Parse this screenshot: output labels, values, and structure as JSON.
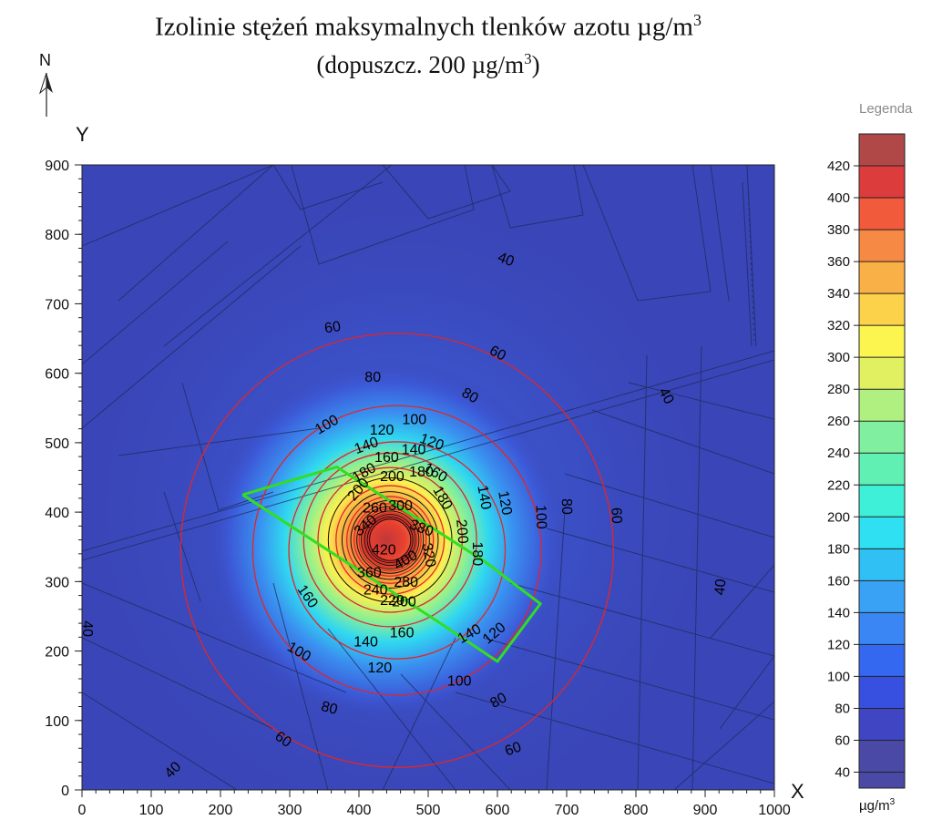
{
  "title": {
    "line1": "Izolinie stężeń maksymalnych tlenków azotu µg/m",
    "line1_sup": "3",
    "line2": "(dopuszcz. 200 µg/m",
    "line2_sup": "3",
    "line2_end": ")"
  },
  "north_arrow": {
    "label": "N"
  },
  "legend": {
    "title": "Legenda",
    "unit": "µg/m",
    "unit_sup": "3"
  },
  "colors": {
    "background_field": "#3a46b8",
    "red_contour": "#e0262a",
    "black_contour": "#111111",
    "boundary": "#33dd22",
    "cadastral_lines": "#1e2a5c"
  },
  "chart_data": {
    "type": "contour",
    "xlabel": "X",
    "ylabel": "Y",
    "xlim": [
      0,
      1000
    ],
    "ylim": [
      0,
      900
    ],
    "xticks": [
      0,
      100,
      200,
      300,
      400,
      500,
      600,
      700,
      800,
      900,
      1000
    ],
    "yticks": [
      0,
      100,
      200,
      300,
      400,
      500,
      600,
      700,
      800,
      900
    ],
    "peak": {
      "x": 440,
      "y": 360
    },
    "legend_levels": [
      40,
      60,
      80,
      100,
      120,
      140,
      160,
      180,
      200,
      220,
      240,
      260,
      280,
      300,
      320,
      340,
      360,
      380,
      400,
      420
    ],
    "legend_colors": [
      "#4a4aa6",
      "#4045c4",
      "#3850e0",
      "#3468f0",
      "#3a86f4",
      "#3aa2f4",
      "#30c0f4",
      "#2ee0f2",
      "#3ef0d8",
      "#60f0b4",
      "#80f0a0",
      "#b0f080",
      "#e0f060",
      "#fcf550",
      "#fcd24a",
      "#f9b046",
      "#f68a44",
      "#f15a3a",
      "#dc3c3c",
      "#b04848"
    ],
    "contour_labels": [
      {
        "text": "40",
        "x": 612,
        "y": 763,
        "angle": 20
      },
      {
        "text": "40",
        "x": 843,
        "y": 567,
        "angle": 62
      },
      {
        "text": "40",
        "x": 923,
        "y": 292,
        "angle": -85
      },
      {
        "text": "40",
        "x": 7,
        "y": 232,
        "angle": 90
      },
      {
        "text": "40",
        "x": 132,
        "y": 28,
        "angle": -45
      },
      {
        "text": "60",
        "x": 362,
        "y": 665,
        "angle": -8
      },
      {
        "text": "60",
        "x": 600,
        "y": 628,
        "angle": 28
      },
      {
        "text": "60",
        "x": 771,
        "y": 395,
        "angle": 88
      },
      {
        "text": "60",
        "x": 623,
        "y": 58,
        "angle": -20
      },
      {
        "text": "60",
        "x": 290,
        "y": 72,
        "angle": 35
      },
      {
        "text": "80",
        "x": 420,
        "y": 593,
        "angle": 0
      },
      {
        "text": "80",
        "x": 560,
        "y": 567,
        "angle": 30
      },
      {
        "text": "80",
        "x": 699,
        "y": 408,
        "angle": 88
      },
      {
        "text": "80",
        "x": 602,
        "y": 128,
        "angle": -30
      },
      {
        "text": "80",
        "x": 357,
        "y": 117,
        "angle": 15
      },
      {
        "text": "100",
        "x": 354,
        "y": 525,
        "angle": -30
      },
      {
        "text": "100",
        "x": 480,
        "y": 532,
        "angle": 0
      },
      {
        "text": "100",
        "x": 662,
        "y": 393,
        "angle": 88
      },
      {
        "text": "100",
        "x": 545,
        "y": 156,
        "angle": 0
      },
      {
        "text": "100",
        "x": 313,
        "y": 198,
        "angle": 30
      },
      {
        "text": "120",
        "x": 433,
        "y": 517,
        "angle": 0
      },
      {
        "text": "120",
        "x": 505,
        "y": 500,
        "angle": 20
      },
      {
        "text": "120",
        "x": 610,
        "y": 413,
        "angle": 80
      },
      {
        "text": "120",
        "x": 430,
        "y": 175,
        "angle": 0
      },
      {
        "text": "120",
        "x": 596,
        "y": 225,
        "angle": -40
      },
      {
        "text": "140",
        "x": 411,
        "y": 495,
        "angle": -20
      },
      {
        "text": "140",
        "x": 479,
        "y": 489,
        "angle": 0
      },
      {
        "text": "140",
        "x": 580,
        "y": 421,
        "angle": 80
      },
      {
        "text": "140",
        "x": 410,
        "y": 212,
        "angle": 0
      },
      {
        "text": "140",
        "x": 560,
        "y": 224,
        "angle": -30
      },
      {
        "text": "160",
        "x": 440,
        "y": 478,
        "angle": 0
      },
      {
        "text": "160",
        "x": 510,
        "y": 456,
        "angle": 30
      },
      {
        "text": "160",
        "x": 462,
        "y": 225,
        "angle": 0
      },
      {
        "text": "160",
        "x": 325,
        "y": 278,
        "angle": 55
      },
      {
        "text": "180",
        "x": 408,
        "y": 456,
        "angle": -30
      },
      {
        "text": "180",
        "x": 490,
        "y": 457,
        "angle": 0
      },
      {
        "text": "180",
        "x": 520,
        "y": 420,
        "angle": 60
      },
      {
        "text": "180",
        "x": 570,
        "y": 340,
        "angle": 90
      },
      {
        "text": "200",
        "x": 448,
        "y": 450,
        "angle": 0
      },
      {
        "text": "200",
        "x": 400,
        "y": 432,
        "angle": -50
      },
      {
        "text": "200",
        "x": 548,
        "y": 372,
        "angle": 85
      },
      {
        "text": "200",
        "x": 465,
        "y": 270,
        "angle": 0
      },
      {
        "text": "260",
        "x": 423,
        "y": 405,
        "angle": 0
      },
      {
        "text": "300",
        "x": 460,
        "y": 408,
        "angle": 0
      },
      {
        "text": "340",
        "x": 410,
        "y": 380,
        "angle": -40
      },
      {
        "text": "380",
        "x": 490,
        "y": 376,
        "angle": 20
      },
      {
        "text": "420",
        "x": 436,
        "y": 345,
        "angle": 0
      },
      {
        "text": "400",
        "x": 468,
        "y": 330,
        "angle": -30
      },
      {
        "text": "360",
        "x": 415,
        "y": 312,
        "angle": 0
      },
      {
        "text": "320",
        "x": 500,
        "y": 338,
        "angle": 80
      },
      {
        "text": "280",
        "x": 468,
        "y": 298,
        "angle": 0
      },
      {
        "text": "240",
        "x": 424,
        "y": 287,
        "angle": 0
      },
      {
        "text": "220",
        "x": 448,
        "y": 272,
        "angle": 0
      }
    ],
    "boundary_polygon": [
      [
        232,
        425
      ],
      [
        368,
        465
      ],
      [
        580,
        330
      ],
      [
        662,
        268
      ],
      [
        600,
        185
      ],
      [
        510,
        245
      ],
      [
        232,
        425
      ]
    ]
  }
}
